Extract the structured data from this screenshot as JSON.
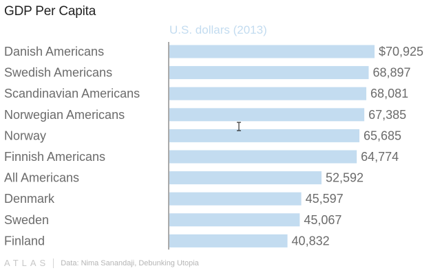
{
  "header": {
    "title": "GDP Per Capita",
    "subtitle": "U.S. dollars (2013)"
  },
  "footer": {
    "brand": "ATLAS",
    "source": "Data: Nima Sanandaji, Debunking Utopia"
  },
  "colors": {
    "bar": "#c3dcf0",
    "axis": "#555555",
    "label": "#6b6b6b",
    "subtitle": "#c3dcf0"
  },
  "chart_data": {
    "type": "bar",
    "orientation": "horizontal",
    "title": "GDP Per Capita",
    "subtitle": "U.S. dollars (2013)",
    "categories": [
      "Danish Americans",
      "Swedish Americans",
      "Scandinavian Americans",
      "Norwegian Americans",
      "Norway",
      "Finnish Americans",
      "All Americans",
      "Denmark",
      "Sweden",
      "Finland"
    ],
    "values": [
      70925,
      68897,
      68081,
      67385,
      65685,
      64774,
      52592,
      45597,
      45067,
      40832
    ],
    "value_labels": [
      "$70,925",
      "68,897",
      "68,081",
      "67,385",
      "65,685",
      "64,774",
      "52,592",
      "45,597",
      "45,067",
      "40,832"
    ],
    "xlim": [
      0,
      70925
    ],
    "grid": false,
    "source": "Data: Nima Sanandaji, Debunking Utopia"
  }
}
